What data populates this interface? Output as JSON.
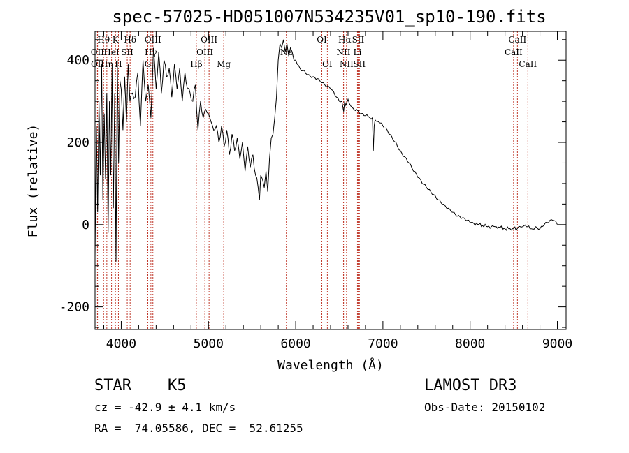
{
  "chart_data": {
    "type": "line",
    "title": "spec-57025-HD051007N534235V01_sp10-190.fits",
    "xlabel": "Wavelength (Å)",
    "ylabel": "Flux (relative)",
    "xlim": [
      3700,
      9100
    ],
    "ylim": [
      -255,
      470
    ],
    "x_ticks": [
      4000,
      5000,
      6000,
      7000,
      8000,
      9000
    ],
    "y_ticks": [
      -200,
      0,
      200,
      400
    ],
    "series": [
      {
        "name": "flux",
        "x": [
          3700,
          3715,
          3730,
          3745,
          3760,
          3775,
          3790,
          3805,
          3820,
          3835,
          3850,
          3865,
          3880,
          3895,
          3910,
          3925,
          3940,
          3955,
          3970,
          3985,
          4000,
          4020,
          4040,
          4060,
          4080,
          4100,
          4130,
          4160,
          4190,
          4220,
          4250,
          4280,
          4310,
          4340,
          4370,
          4400,
          4430,
          4460,
          4490,
          4520,
          4550,
          4580,
          4610,
          4640,
          4670,
          4700,
          4730,
          4760,
          4790,
          4820,
          4850,
          4880,
          4910,
          4940,
          4970,
          5000,
          5030,
          5060,
          5090,
          5120,
          5150,
          5180,
          5210,
          5240,
          5270,
          5300,
          5330,
          5360,
          5390,
          5420,
          5450,
          5480,
          5510,
          5540,
          5570,
          5585,
          5600,
          5620,
          5640,
          5660,
          5680,
          5700,
          5720,
          5740,
          5760,
          5780,
          5800,
          5820,
          5840,
          5860,
          5880,
          5900,
          5920,
          5940,
          5960,
          5980,
          6000,
          6050,
          6100,
          6150,
          6200,
          6250,
          6300,
          6350,
          6400,
          6450,
          6500,
          6530,
          6550,
          6562,
          6575,
          6600,
          6650,
          6700,
          6750,
          6800,
          6850,
          6880,
          6890,
          6900,
          6910,
          6950,
          7000,
          7050,
          7100,
          7150,
          7200,
          7250,
          7300,
          7350,
          7400,
          7450,
          7500,
          7550,
          7600,
          7650,
          7700,
          7750,
          7800,
          7850,
          7900,
          7950,
          8000,
          8100,
          8200,
          8300,
          8400,
          8500,
          8540,
          8600,
          8660,
          8700,
          8750,
          8800,
          8850,
          8900,
          8950,
          9000
        ],
        "values": [
          -80,
          240,
          30,
          300,
          120,
          390,
          60,
          270,
          110,
          320,
          -20,
          300,
          120,
          380,
          40,
          320,
          -90,
          400,
          150,
          350,
          330,
          230,
          360,
          250,
          390,
          300,
          320,
          310,
          370,
          240,
          400,
          300,
          340,
          260,
          430,
          330,
          420,
          320,
          400,
          360,
          380,
          310,
          390,
          330,
          380,
          300,
          370,
          330,
          320,
          300,
          340,
          230,
          300,
          260,
          280,
          270,
          250,
          230,
          240,
          200,
          240,
          190,
          230,
          170,
          220,
          180,
          210,
          160,
          200,
          130,
          190,
          140,
          170,
          120,
          90,
          60,
          120,
          110,
          90,
          130,
          80,
          160,
          210,
          220,
          260,
          310,
          400,
          440,
          430,
          450,
          420,
          440,
          410,
          430,
          420,
          400,
          400,
          380,
          375,
          365,
          360,
          355,
          345,
          335,
          330,
          315,
          300,
          300,
          275,
          300,
          290,
          305,
          285,
          280,
          270,
          265,
          260,
          260,
          180,
          240,
          255,
          250,
          240,
          230,
          215,
          200,
          180,
          165,
          150,
          130,
          115,
          100,
          90,
          80,
          70,
          60,
          50,
          40,
          30,
          20,
          15,
          10,
          5,
          0,
          -5,
          -5,
          -10,
          -10,
          -10,
          -5,
          -5,
          -10,
          -5,
          -10,
          0,
          5,
          10,
          0
        ]
      }
    ],
    "spectral_lines": [
      {
        "label": "Hθ",
        "wavelength": 3798,
        "row": 0
      },
      {
        "label": "OII",
        "wavelength": 3727,
        "row": 1
      },
      {
        "label": "OII",
        "wavelength": 3729,
        "row": 2
      },
      {
        "label": "HeI",
        "wavelength": 3889,
        "row": 1
      },
      {
        "label": "Hη",
        "wavelength": 3835,
        "row": 2
      },
      {
        "label": "K",
        "wavelength": 3934,
        "row": 0
      },
      {
        "label": "H",
        "wavelength": 3968,
        "row": 2
      },
      {
        "label": "SII",
        "wavelength": 4069,
        "row": 1
      },
      {
        "label": "Hδ",
        "wavelength": 4102,
        "row": 0
      },
      {
        "label": "OIII",
        "wavelength": 4363,
        "row": 0
      },
      {
        "label": "Hγ",
        "wavelength": 4340,
        "row": 1
      },
      {
        "label": "G",
        "wavelength": 4305,
        "row": 2
      },
      {
        "label": "Hβ",
        "wavelength": 4861,
        "row": 2
      },
      {
        "label": "OIII",
        "wavelength": 5007,
        "row": 0
      },
      {
        "label": "OIII",
        "wavelength": 4959,
        "row": 1
      },
      {
        "label": "Mg",
        "wavelength": 5175,
        "row": 2
      },
      {
        "label": "Na",
        "wavelength": 5893,
        "row": 1
      },
      {
        "label": "OI",
        "wavelength": 6300,
        "row": 0
      },
      {
        "label": "OI",
        "wavelength": 6363,
        "row": 2
      },
      {
        "label": "Hα",
        "wavelength": 6563,
        "row": 0
      },
      {
        "label": "NII",
        "wavelength": 6548,
        "row": 1
      },
      {
        "label": "NII",
        "wavelength": 6583,
        "row": 2
      },
      {
        "label": "SII",
        "wavelength": 6716,
        "row": 0
      },
      {
        "label": "Li",
        "wavelength": 6708,
        "row": 1
      },
      {
        "label": "SII",
        "wavelength": 6731,
        "row": 2
      },
      {
        "label": "CaII",
        "wavelength": 8542,
        "row": 0
      },
      {
        "label": "CaII",
        "wavelength": 8498,
        "row": 1
      },
      {
        "label": "CaII",
        "wavelength": 8662,
        "row": 2
      }
    ]
  },
  "info": {
    "class_label": "STAR",
    "subclass": "K5",
    "cz": "cz = -42.9 ± 4.1 km/s",
    "coords": "RA =  74.05586, DEC =  52.61255",
    "survey": "LAMOST DR3",
    "obs_date": "Obs-Date: 20150102"
  },
  "colors": {
    "line_marker": "#c0392b",
    "spectrum": "#000000",
    "axis": "#000000"
  }
}
